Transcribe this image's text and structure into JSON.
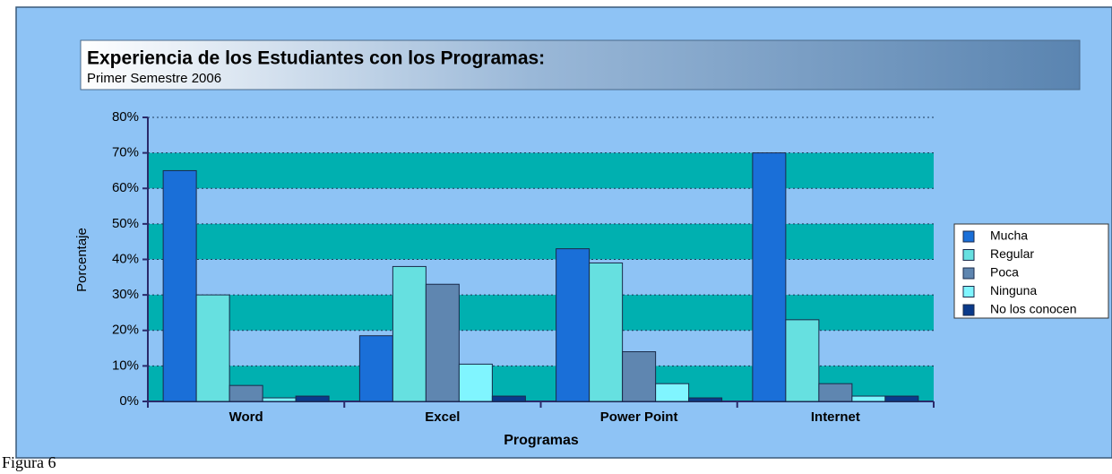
{
  "caption": "Figura 6",
  "chart_data": {
    "type": "bar",
    "title": "Experiencia de los Estudiantes con los Programas:",
    "subtitle": "Primer Semestre 2006",
    "x_label": "Programas",
    "y_label": "Porcentaje",
    "categories": [
      "Word",
      "Excel",
      "Power Point",
      "Internet"
    ],
    "series": [
      {
        "name": "Mucha",
        "color": "#1a6fd8",
        "values": [
          65,
          18.5,
          43,
          70
        ]
      },
      {
        "name": "Regular",
        "color": "#66e0e0",
        "values": [
          30,
          38,
          39,
          23
        ]
      },
      {
        "name": "Poca",
        "color": "#5f86b0",
        "values": [
          4.5,
          33,
          14,
          5
        ]
      },
      {
        "name": "Ninguna",
        "color": "#80f5ff",
        "values": [
          1,
          10.5,
          5,
          1.5
        ]
      },
      {
        "name": "No los conocen",
        "color": "#0a3a8a",
        "values": [
          1.5,
          1.5,
          1,
          1.5
        ]
      }
    ],
    "ylim": [
      0,
      80
    ],
    "yticks": [
      {
        "value": 0,
        "label": "0%"
      },
      {
        "value": 10,
        "label": "10%"
      },
      {
        "value": 20,
        "label": "20%"
      },
      {
        "value": 30,
        "label": "30%"
      },
      {
        "value": 40,
        "label": "40%"
      },
      {
        "value": 50,
        "label": "50%"
      },
      {
        "value": 60,
        "label": "60%"
      },
      {
        "value": 70,
        "label": "70%"
      },
      {
        "value": 80,
        "label": "80%"
      }
    ],
    "grid": true,
    "legend": "right"
  }
}
